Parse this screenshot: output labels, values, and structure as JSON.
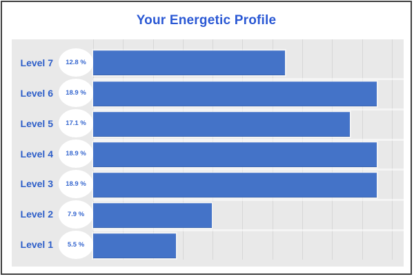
{
  "page": {
    "title": "Your Energetic Profile"
  },
  "colors": {
    "title": "#2a58d4",
    "category_label": "#2d5ec9",
    "percent_text": "#3566cf",
    "bar": "#4473c8",
    "panel_background": "#e9e9e9",
    "gridline": "#d7d7d7",
    "frame_border": "#3e3e3e"
  },
  "chart_data": {
    "type": "bar",
    "orientation": "horizontal",
    "title": "Your Energetic Profile",
    "xlabel": "",
    "ylabel": "",
    "categories": [
      "Level 7",
      "Level 6",
      "Level 5",
      "Level 4",
      "Level 3",
      "Level 2",
      "Level 1"
    ],
    "values": [
      12.8,
      18.9,
      17.1,
      18.9,
      18.9,
      7.9,
      5.5
    ],
    "value_labels": [
      "12.8 %",
      "18.9 %",
      "17.1 %",
      "18.9 %",
      "18.9 %",
      "7.9 %",
      "5.5 %"
    ],
    "rows": [
      {
        "label": "Level 7",
        "pct_label": "12.8 %",
        "value": 12.8
      },
      {
        "label": "Level 6",
        "pct_label": "18.9 %",
        "value": 18.9
      },
      {
        "label": "Level 5",
        "pct_label": "17.1 %",
        "value": 17.1
      },
      {
        "label": "Level 4",
        "pct_label": "18.9 %",
        "value": 18.9
      },
      {
        "label": "Level 3",
        "pct_label": "18.9 %",
        "value": 18.9
      },
      {
        "label": "Level 2",
        "pct_label": "7.9 %",
        "value": 7.9
      },
      {
        "label": "Level 1",
        "pct_label": "5.5 %",
        "value": 5.5
      }
    ],
    "xlim": [
      0,
      20.7
    ],
    "gridline_step": 2,
    "axis_max_tick": 20,
    "grid": "vertical",
    "legend": "none"
  }
}
